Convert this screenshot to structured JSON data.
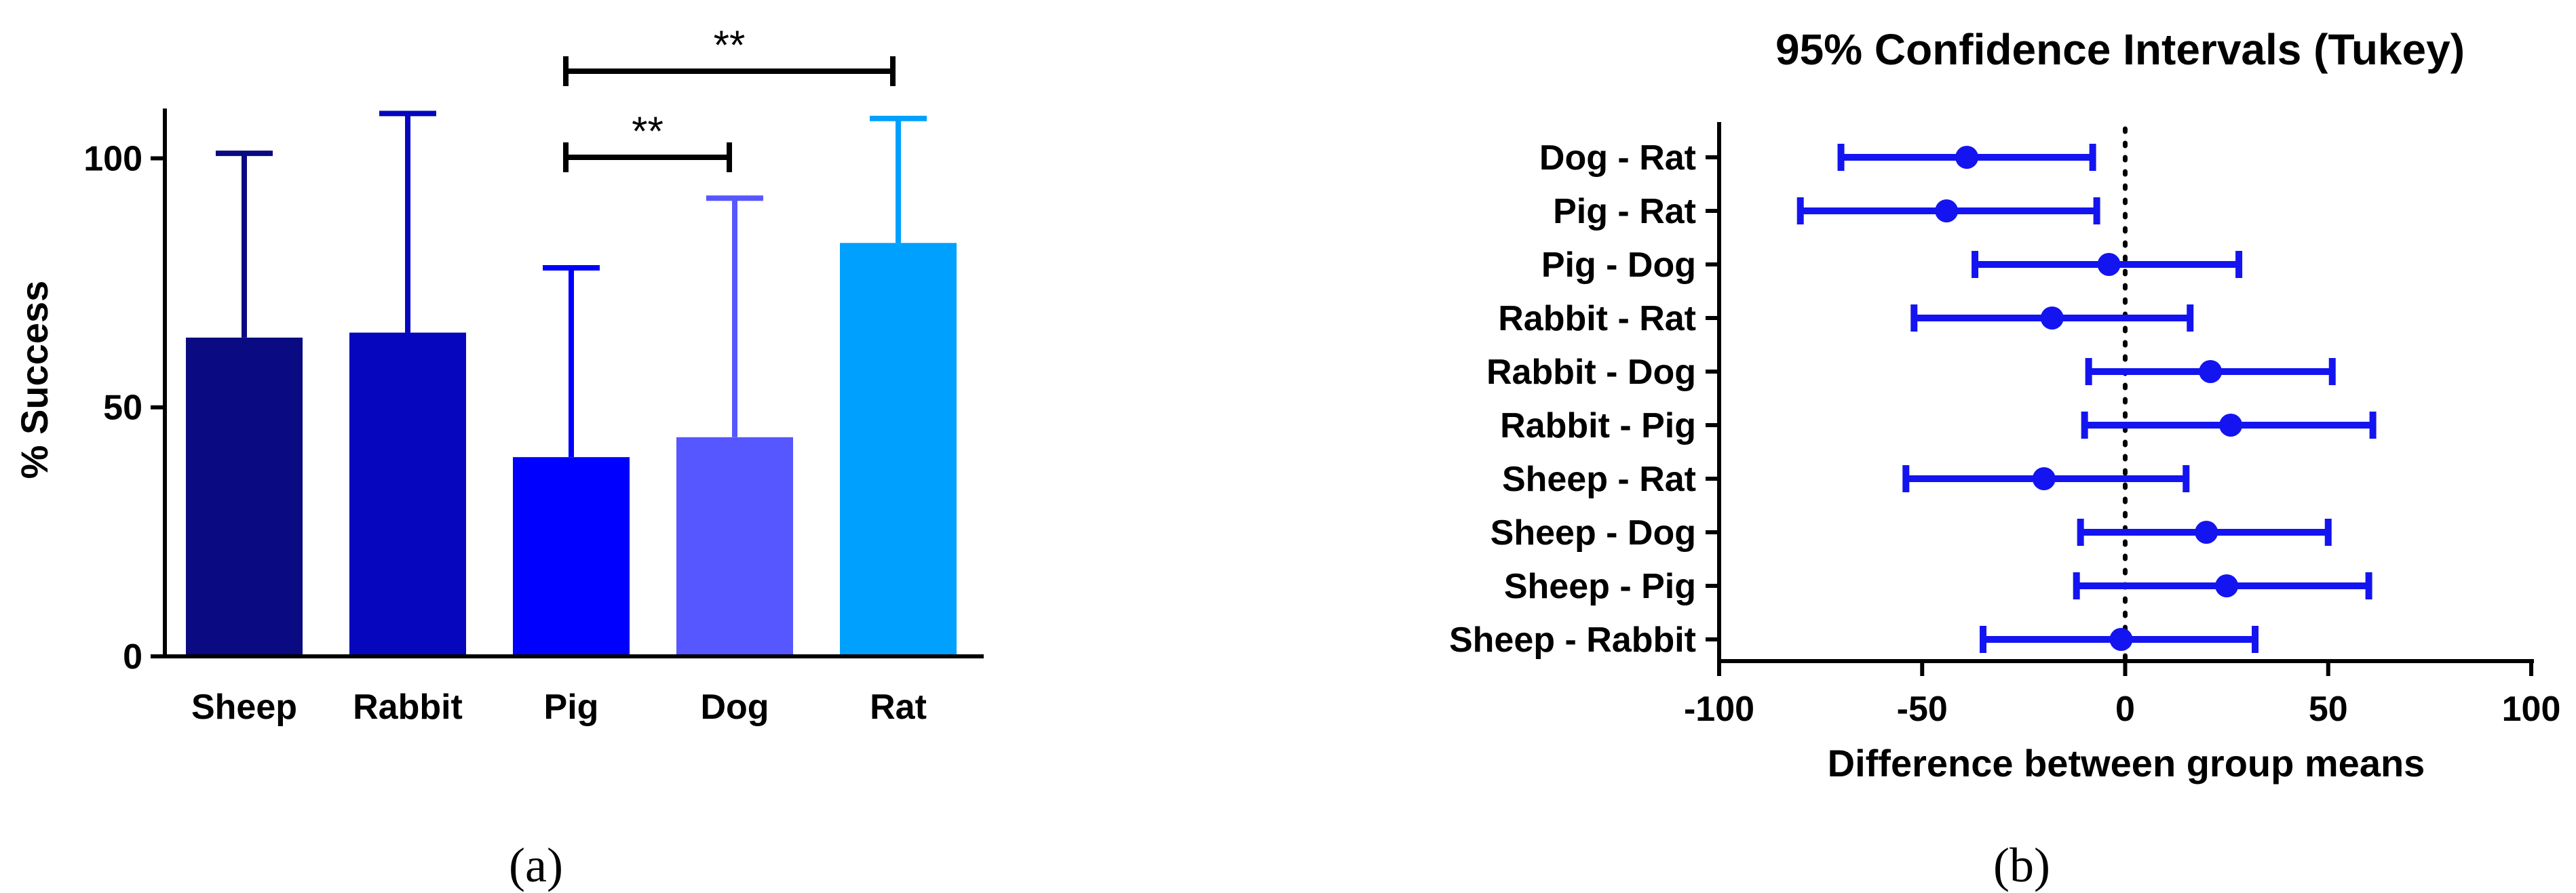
{
  "chart_data": [
    {
      "type": "bar",
      "panel_label": "(a)",
      "title": "",
      "xlabel": "",
      "ylabel": "% Success",
      "ylim": [
        0,
        110
      ],
      "yticks": [
        "0",
        "50",
        "100"
      ],
      "categories": [
        "Sheep",
        "Rabbit",
        "Pig",
        "Dog",
        "Rat"
      ],
      "values": [
        64,
        65,
        40,
        44,
        83
      ],
      "error_upper": [
        101,
        109,
        78,
        92,
        108
      ],
      "colors": [
        "#0a0a82",
        "#0606be",
        "#0000ff",
        "#5757ff",
        "#00a0ff"
      ],
      "significance": [
        {
          "from": "Pig",
          "to": "Dog",
          "label": "**"
        },
        {
          "from": "Pig",
          "to": "Rat",
          "label": "**"
        }
      ]
    },
    {
      "type": "errorbar",
      "panel_label": "(b)",
      "title": "95% Confidence Intervals (Tukey)",
      "xlabel": "Difference between group means",
      "ylabel": "",
      "xlim": [
        -100,
        100
      ],
      "xticks": [
        "-100",
        "-50",
        "0",
        "50",
        "100"
      ],
      "reference_line": 0,
      "color": "#1414f0",
      "comparisons": [
        {
          "label": "Dog - Rat",
          "mean": -39,
          "low": -70,
          "high": -8
        },
        {
          "label": "Pig - Rat",
          "mean": -44,
          "low": -80,
          "high": -7
        },
        {
          "label": "Pig - Dog",
          "mean": -4,
          "low": -37,
          "high": 28
        },
        {
          "label": "Rabbit - Rat",
          "mean": -18,
          "low": -52,
          "high": 16
        },
        {
          "label": "Rabbit - Dog",
          "mean": 21,
          "low": -9,
          "high": 51
        },
        {
          "label": "Rabbit - Pig",
          "mean": 26,
          "low": -10,
          "high": 61
        },
        {
          "label": "Sheep - Rat",
          "mean": -20,
          "low": -54,
          "high": 15
        },
        {
          "label": "Sheep - Dog",
          "mean": 20,
          "low": -11,
          "high": 50
        },
        {
          "label": "Sheep - Pig",
          "mean": 25,
          "low": -12,
          "high": 60
        },
        {
          "label": "Sheep - Rabbit",
          "mean": -1,
          "low": -35,
          "high": 32
        }
      ]
    }
  ]
}
